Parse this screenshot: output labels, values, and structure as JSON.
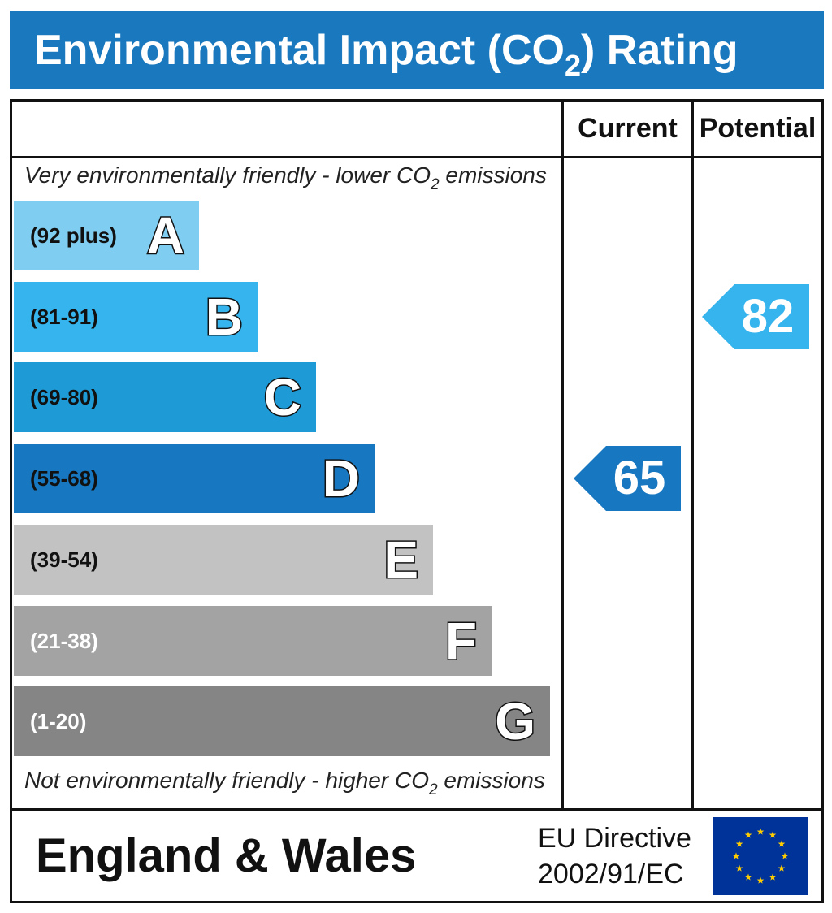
{
  "title": {
    "main": "Environmental Impact (CO",
    "sub": "2",
    "end": ") Rating"
  },
  "columns": {
    "current": "Current",
    "potential": "Potential"
  },
  "top_note": {
    "before": "Very environmentally friendly - lower CO",
    "sub": "2",
    "after": " emissions"
  },
  "bottom_note": {
    "before": "Not environmentally friendly - higher CO",
    "sub": "2",
    "after": " emissions"
  },
  "footer": {
    "region": "England & Wales",
    "directive_line1": "EU Directive",
    "directive_line2": "2002/91/EC"
  },
  "chart_data": {
    "type": "bar",
    "bands": [
      {
        "letter": "A",
        "range": "(92 plus)",
        "color": "#7fcdf0",
        "text_color": "#111111"
      },
      {
        "letter": "B",
        "range": "(81-91)",
        "color": "#35b4ee",
        "text_color": "#111111"
      },
      {
        "letter": "C",
        "range": "(69-80)",
        "color": "#1e9bd7",
        "text_color": "#111111"
      },
      {
        "letter": "D",
        "range": "(55-68)",
        "color": "#1777c0",
        "text_color": "#111111"
      },
      {
        "letter": "E",
        "range": "(39-54)",
        "color": "#c2c2c2",
        "text_color": "#111111"
      },
      {
        "letter": "F",
        "range": "(21-38)",
        "color": "#a3a3a3",
        "text_color": "#ffffff"
      },
      {
        "letter": "G",
        "range": "(1-20)",
        "color": "#858585",
        "text_color": "#ffffff"
      }
    ],
    "current": {
      "value": 65,
      "band": "D",
      "color": "#1777c0"
    },
    "potential": {
      "value": 82,
      "band": "B",
      "color": "#35b4ee"
    }
  }
}
